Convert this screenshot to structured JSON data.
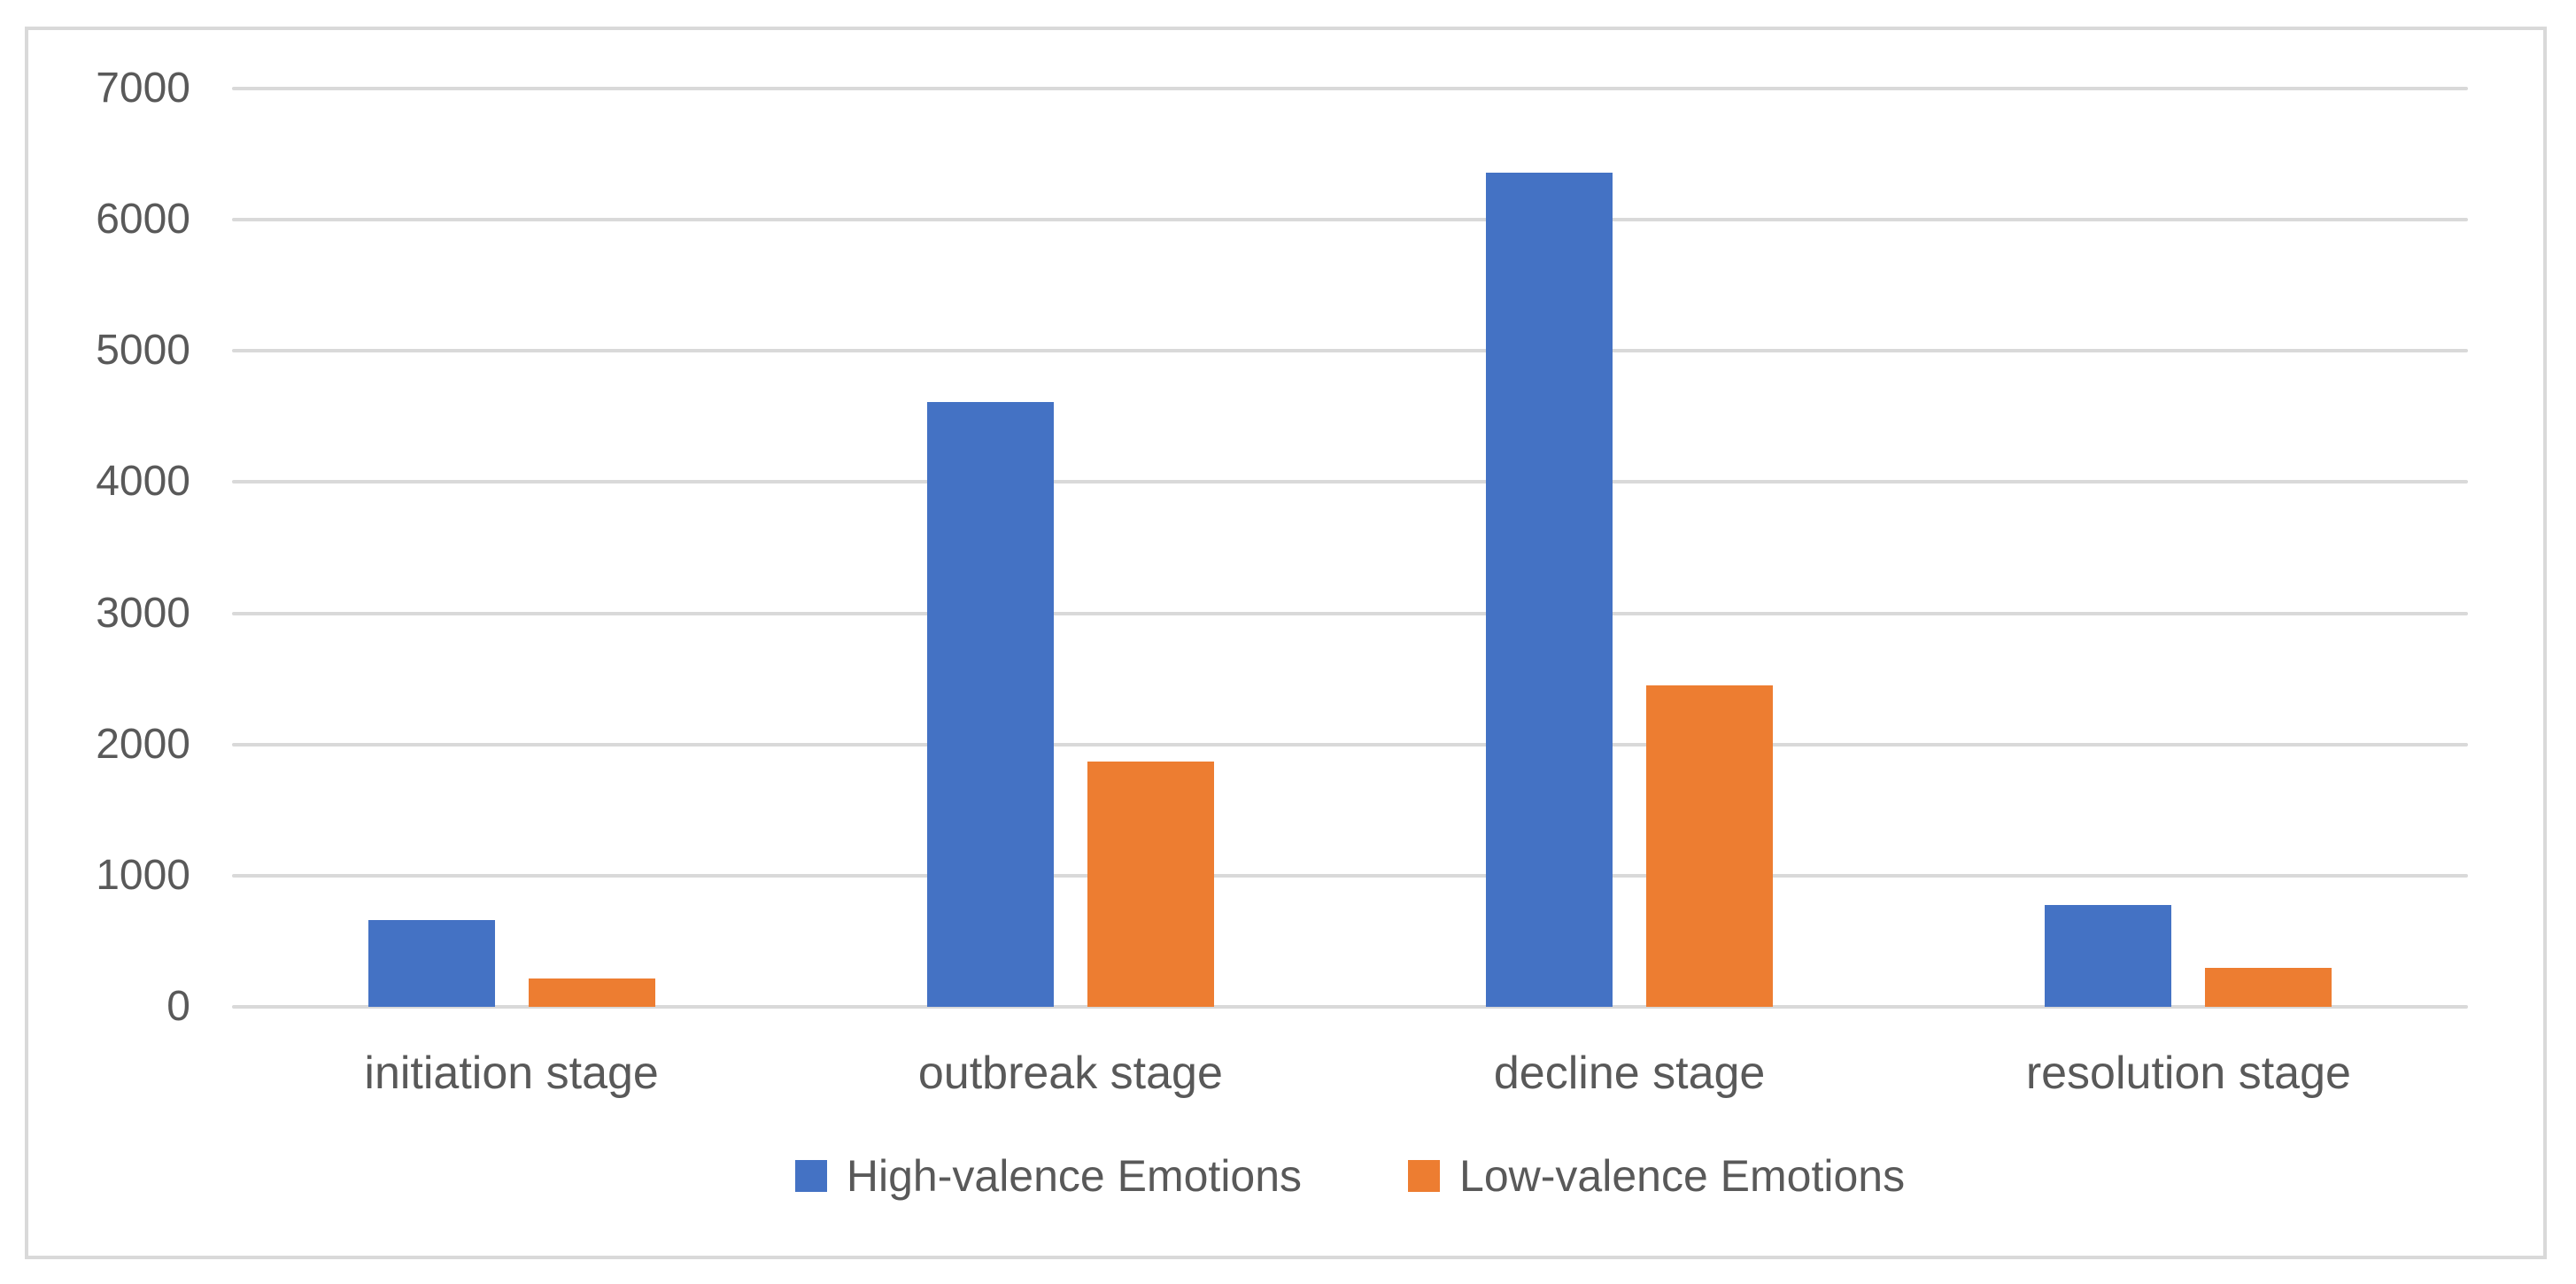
{
  "chart_data": {
    "type": "bar",
    "title": "",
    "xlabel": "",
    "ylabel": "",
    "categories": [
      "initiation stage",
      "outbreak stage",
      "decline stage",
      "resolution stage"
    ],
    "series": [
      {
        "name": "High-valence Emotions",
        "color": "#4472C4",
        "values": [
          660,
          4610,
          6360,
          775
        ]
      },
      {
        "name": "Low-valence Emotions",
        "color": "#ED7D31",
        "values": [
          215,
          1870,
          2450,
          300
        ]
      }
    ],
    "ylim": [
      0,
      7000
    ],
    "yticks": [
      0,
      1000,
      2000,
      3000,
      4000,
      5000,
      6000,
      7000
    ],
    "grid": true,
    "gridline_color": "#D9D9D9",
    "axis_text_color": "#595959",
    "frame_border_color": "#D9D9D9",
    "background_color": "#FFFFFF",
    "legend_position": "bottom"
  }
}
